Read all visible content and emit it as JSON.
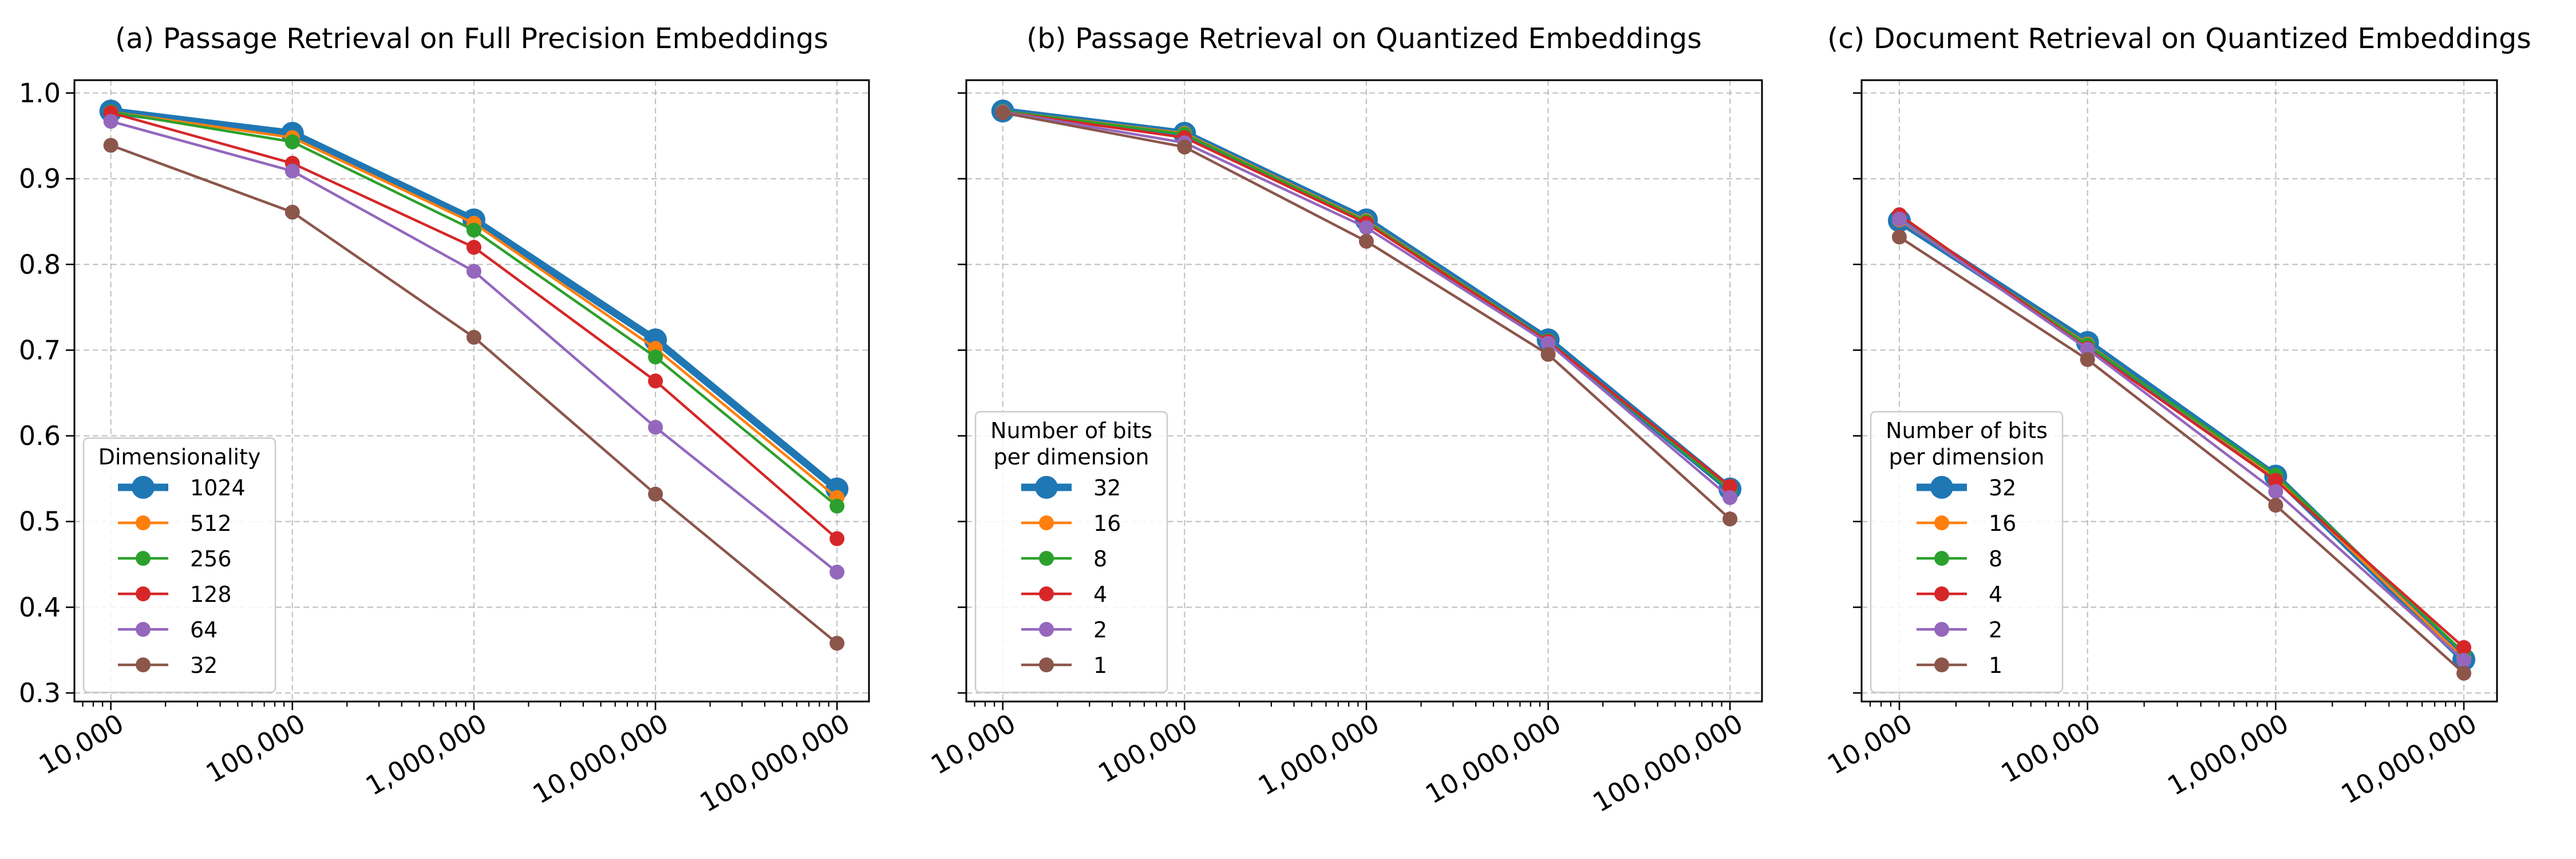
{
  "chart_data": [
    {
      "type": "line",
      "title": "(a) Passage Retrieval on Full Precision Embeddings",
      "x_scale": "log",
      "xlim": [
        6300,
        150000000
      ],
      "ylim": [
        0.29,
        1.015
      ],
      "x": [
        10000,
        100000,
        1000000,
        10000000,
        100000000
      ],
      "x_tick_labels": [
        "10,000",
        "100,000",
        "1,000,000",
        "10,000,000",
        "100,000,000"
      ],
      "y_ticks": [
        0.3,
        0.4,
        0.5,
        0.6,
        0.7,
        0.8,
        0.9,
        1.0
      ],
      "y_tick_labels": [
        "0.3",
        "0.4",
        "0.5",
        "0.6",
        "0.7",
        "0.8",
        "0.9",
        "1.0"
      ],
      "show_y_tick_labels": true,
      "grid": true,
      "legend": {
        "title": "Dimensionality",
        "title_lines": [
          "Dimensionality"
        ],
        "placement": "lower-left"
      },
      "series": [
        {
          "name": "1024",
          "color": "#1f77b4",
          "values": [
            0.979,
            0.953,
            0.852,
            0.712,
            0.538
          ],
          "emphasis": true
        },
        {
          "name": "512",
          "color": "#ff7f0e",
          "values": [
            0.978,
            0.948,
            0.848,
            0.702,
            0.528
          ]
        },
        {
          "name": "256",
          "color": "#2ca02c",
          "values": [
            0.978,
            0.943,
            0.84,
            0.692,
            0.518
          ]
        },
        {
          "name": "128",
          "color": "#d62728",
          "values": [
            0.977,
            0.918,
            0.82,
            0.664,
            0.48
          ]
        },
        {
          "name": "64",
          "color": "#9467bd",
          "values": [
            0.967,
            0.909,
            0.792,
            0.61,
            0.441
          ]
        },
        {
          "name": "32",
          "color": "#8c564b",
          "values": [
            0.939,
            0.861,
            0.715,
            0.532,
            0.358
          ]
        }
      ]
    },
    {
      "type": "line",
      "title": "(b) Passage Retrieval on Quantized Embeddings",
      "x_scale": "log",
      "xlim": [
        6300,
        150000000
      ],
      "ylim": [
        0.29,
        1.015
      ],
      "x": [
        10000,
        100000,
        1000000,
        10000000,
        100000000
      ],
      "x_tick_labels": [
        "10,000",
        "100,000",
        "1,000,000",
        "10,000,000",
        "100,000,000"
      ],
      "y_ticks": [
        0.3,
        0.4,
        0.5,
        0.6,
        0.7,
        0.8,
        0.9,
        1.0
      ],
      "y_tick_labels": [
        "0.3",
        "0.4",
        "0.5",
        "0.6",
        "0.7",
        "0.8",
        "0.9",
        "1.0"
      ],
      "show_y_tick_labels": false,
      "grid": true,
      "legend": {
        "title": "Number of bits per dimension",
        "title_lines": [
          "Number of bits",
          "per dimension"
        ],
        "placement": "lower-left"
      },
      "series": [
        {
          "name": "32",
          "color": "#1f77b4",
          "values": [
            0.979,
            0.953,
            0.852,
            0.712,
            0.538
          ],
          "emphasis": true
        },
        {
          "name": "16",
          "color": "#ff7f0e",
          "values": [
            0.979,
            0.953,
            0.851,
            0.711,
            0.537
          ]
        },
        {
          "name": "8",
          "color": "#2ca02c",
          "values": [
            0.979,
            0.952,
            0.85,
            0.711,
            0.537
          ]
        },
        {
          "name": "4",
          "color": "#d62728",
          "values": [
            0.978,
            0.948,
            0.848,
            0.71,
            0.541
          ]
        },
        {
          "name": "2",
          "color": "#9467bd",
          "values": [
            0.978,
            0.942,
            0.843,
            0.708,
            0.528
          ]
        },
        {
          "name": "1",
          "color": "#8c564b",
          "values": [
            0.977,
            0.937,
            0.827,
            0.695,
            0.503
          ]
        }
      ]
    },
    {
      "type": "line",
      "title": "(c) Document Retrieval on Quantized Embeddings",
      "x_scale": "log",
      "xlim": [
        6300,
        15000000
      ],
      "ylim": [
        0.29,
        1.015
      ],
      "x": [
        10000,
        100000,
        1000000,
        10000000
      ],
      "x_tick_labels": [
        "10,000",
        "100,000",
        "1,000,000",
        "10,000,000"
      ],
      "y_ticks": [
        0.3,
        0.4,
        0.5,
        0.6,
        0.7,
        0.8,
        0.9,
        1.0
      ],
      "y_tick_labels": [
        "0.3",
        "0.4",
        "0.5",
        "0.6",
        "0.7",
        "0.8",
        "0.9",
        "1.0"
      ],
      "show_y_tick_labels": false,
      "grid": true,
      "legend": {
        "title": "Number of bits per dimension",
        "title_lines": [
          "Number of bits",
          "per dimension"
        ],
        "placement": "lower-left"
      },
      "series": [
        {
          "name": "32",
          "color": "#1f77b4",
          "values": [
            0.851,
            0.709,
            0.553,
            0.339
          ],
          "emphasis": true
        },
        {
          "name": "16",
          "color": "#ff7f0e",
          "values": [
            0.852,
            0.707,
            0.552,
            0.34
          ]
        },
        {
          "name": "8",
          "color": "#2ca02c",
          "values": [
            0.853,
            0.706,
            0.554,
            0.347
          ]
        },
        {
          "name": "4",
          "color": "#d62728",
          "values": [
            0.858,
            0.702,
            0.548,
            0.353
          ]
        },
        {
          "name": "2",
          "color": "#9467bd",
          "values": [
            0.853,
            0.701,
            0.535,
            0.338
          ]
        },
        {
          "name": "1",
          "color": "#8c564b",
          "values": [
            0.832,
            0.689,
            0.519,
            0.323
          ]
        }
      ]
    }
  ]
}
